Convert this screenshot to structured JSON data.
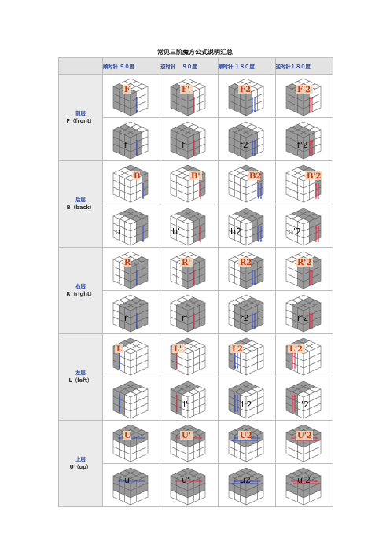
{
  "title": "常见三阶魔方公式说明汇总",
  "column_headers": [
    "顺时针 ９０度",
    "逆时针　 ９０度",
    "顺时针 １８０度",
    "逆时针１８０度"
  ],
  "colors": {
    "cw_arrow": "#3a4fd0",
    "ccw_arrow": "#e0304a",
    "layer_red_label": "#c23a1a",
    "label_bg": "#f5dcc0"
  },
  "rows": [
    {
      "name_cn": "前层",
      "name_en": "F（front）",
      "moves": [
        [
          "F",
          "F'",
          "F2",
          "F'2"
        ],
        [
          "f",
          "f'",
          "f2",
          "f'2"
        ]
      ]
    },
    {
      "name_cn": "后层",
      "name_en": "B（back）",
      "moves": [
        [
          "B",
          "B'",
          "B2",
          "B'2"
        ],
        [
          "b",
          "b'",
          "b2",
          "b'2"
        ]
      ]
    },
    {
      "name_cn": "右层",
      "name_en": "R（right）",
      "moves": [
        [
          "R",
          "R'",
          "R2",
          "R'2"
        ],
        [
          "r",
          "r'",
          "r2",
          "r'2"
        ]
      ]
    },
    {
      "name_cn": "左层",
      "name_en": "L（left）",
      "moves": [
        [
          "L",
          "L'",
          "L2",
          "L'2"
        ],
        [
          "l",
          "l'",
          "l 2",
          "l'2"
        ]
      ]
    },
    {
      "name_cn": "上层",
      "name_en": "U（up）",
      "moves": [
        [
          "U",
          "U'",
          "U2",
          "U'2"
        ],
        [
          "u",
          "u'",
          "u2",
          "u'2"
        ]
      ]
    }
  ]
}
